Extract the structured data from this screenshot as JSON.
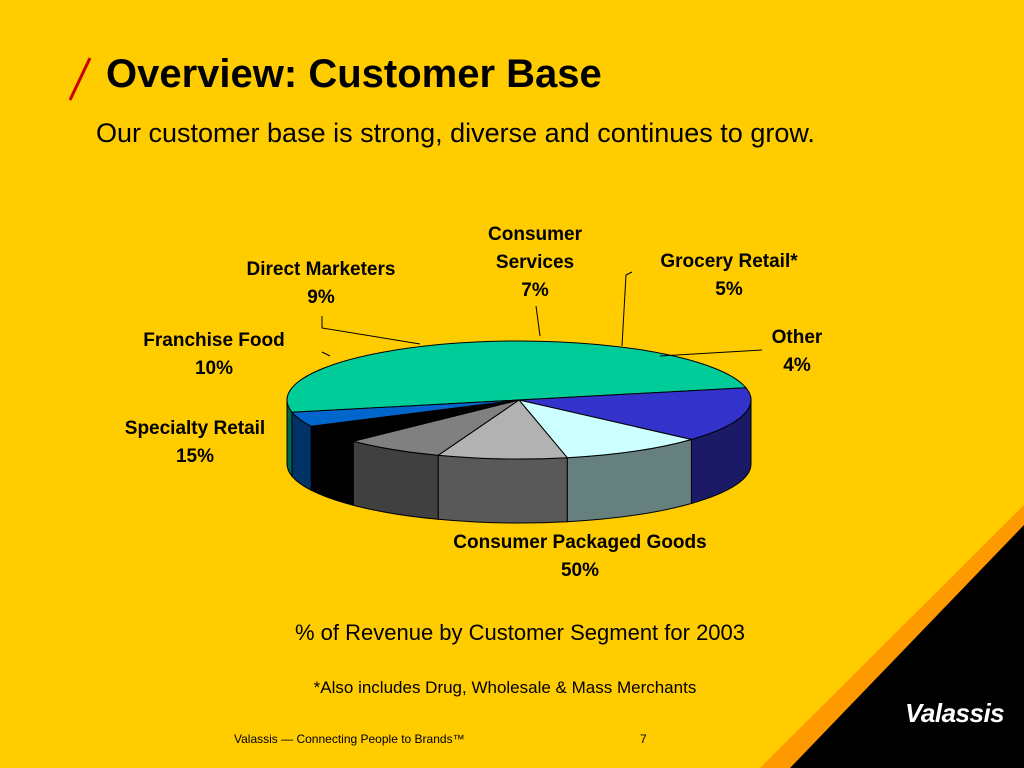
{
  "header": {
    "title": "Overview:  Customer Base",
    "subtitle": "Our customer base is strong, diverse and continues to grow."
  },
  "chart_data": {
    "type": "pie",
    "style": "3d",
    "categories": [
      "Consumer Packaged Goods",
      "Specialty Retail",
      "Franchise Food",
      "Direct Marketers",
      "Consumer Services",
      "Grocery Retail*",
      "Other"
    ],
    "values": [
      50,
      15,
      10,
      9,
      7,
      5,
      4
    ],
    "labels": [
      [
        "Consumer Packaged Goods",
        "50%"
      ],
      [
        "Specialty Retail",
        "15%"
      ],
      [
        "Franchise Food",
        "10%"
      ],
      [
        "Direct Marketers",
        "9%"
      ],
      [
        "Consumer",
        "Services",
        "7%"
      ],
      [
        "Grocery Retail*",
        "5%"
      ],
      [
        "Other",
        "4%"
      ]
    ],
    "colors": [
      "#00CC99",
      "#3333CC",
      "#CCFFFF",
      "#B2B2B2",
      "#808080",
      "#000000",
      "#0066CC"
    ],
    "side_colors": [
      "#006650",
      "#1A1A66",
      "#668080",
      "#595959",
      "#404040",
      "#000000",
      "#003366"
    ],
    "caption": "% of Revenue by Customer Segment for 2003",
    "legend": "none"
  },
  "footnote": "*Also includes Drug, Wholesale & Mass Merchants",
  "footer": {
    "text": "Valassis — Connecting People to Brands™",
    "page": "7",
    "brand": "alassis",
    "brand_initial": "V"
  },
  "colors": {
    "background": "#FFCC00",
    "corner_dark": "#000000",
    "corner_accent": "#FF9900",
    "slash": "#CC0000"
  }
}
